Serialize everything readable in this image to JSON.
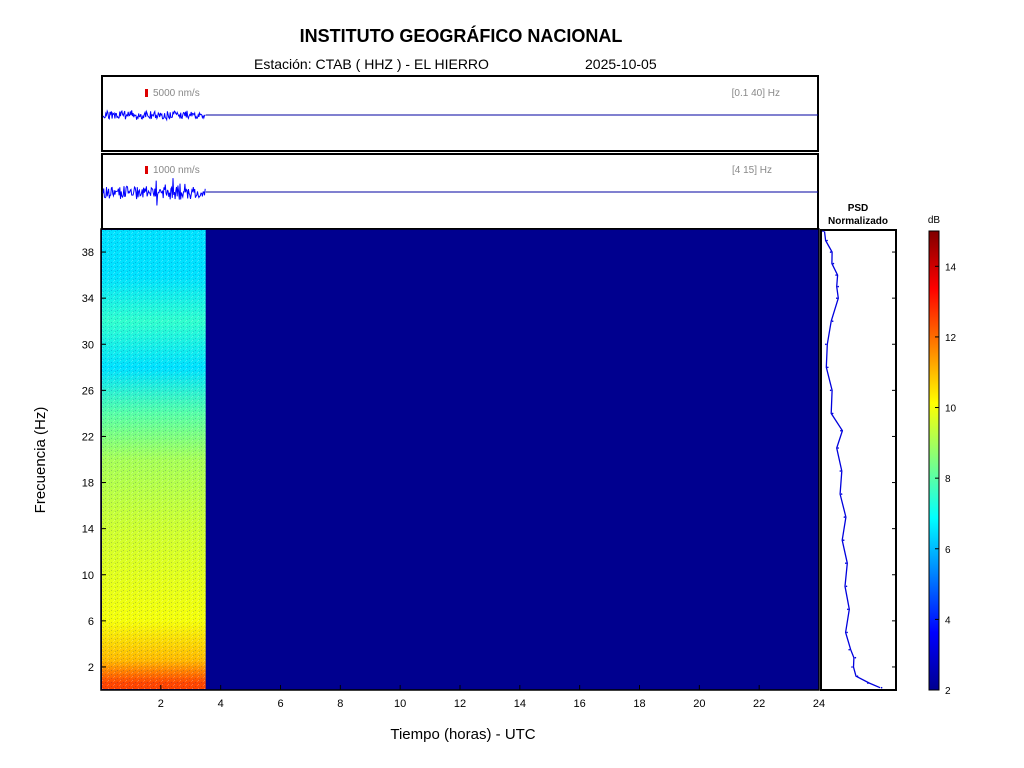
{
  "header": {
    "title": "INSTITUTO GEOGRÁFICO NACIONAL",
    "station": "Estación:  CTAB ( HHZ ) - EL HIERRO",
    "date": "2025-10-05"
  },
  "colors": {
    "trace": "#0000ff",
    "scale_marker": "#dd0000",
    "background_spectrum": "#00008f"
  },
  "chart_data": [
    {
      "type": "line",
      "panel": "seismogram-broadband",
      "scale_label": "5000 nm/s",
      "filter_label": "[0.1 40] Hz",
      "data_end_hour": 3.5,
      "xlim": [
        0,
        24
      ]
    },
    {
      "type": "line",
      "panel": "seismogram-filtered",
      "scale_label": "1000 nm/s",
      "filter_label": "[4 15] Hz",
      "data_end_hour": 3.5,
      "xlim": [
        0,
        24
      ]
    },
    {
      "type": "heatmap",
      "panel": "spectrogram",
      "xlabel": "Tiempo (horas) - UTC",
      "ylabel": "Frecuencia  (Hz)",
      "xlim": [
        0,
        24
      ],
      "ylim": [
        0,
        40
      ],
      "x_ticks": [
        2,
        4,
        6,
        8,
        10,
        12,
        14,
        16,
        18,
        20,
        22,
        24
      ],
      "y_ticks": [
        2,
        6,
        10,
        14,
        18,
        22,
        26,
        30,
        34,
        38
      ],
      "data_end_hour": 3.5,
      "approx_level_db": [
        {
          "freq": 0.5,
          "db": 12.5
        },
        {
          "freq": 2.5,
          "db": 11
        },
        {
          "freq": 6,
          "db": 10
        },
        {
          "freq": 14,
          "db": 9.5
        },
        {
          "freq": 20,
          "db": 9
        },
        {
          "freq": 24,
          "db": 8
        },
        {
          "freq": 28,
          "db": 6.5
        },
        {
          "freq": 32,
          "db": 7.5
        },
        {
          "freq": 36,
          "db": 6.5
        },
        {
          "freq": 40,
          "db": 6.5
        }
      ],
      "no_data_db": 2
    },
    {
      "type": "line",
      "panel": "psd",
      "title": "PSD\nNormalizado",
      "title_lines": [
        "PSD",
        "Normalizado"
      ],
      "points": [
        {
          "freq": 0.2,
          "v": 0.85
        },
        {
          "freq": 0.6,
          "v": 0.65
        },
        {
          "freq": 1.2,
          "v": 0.5
        },
        {
          "freq": 2.0,
          "v": 0.42
        },
        {
          "freq": 2.8,
          "v": 0.47
        },
        {
          "freq": 3.5,
          "v": 0.38
        },
        {
          "freq": 5,
          "v": 0.35
        },
        {
          "freq": 7,
          "v": 0.36
        },
        {
          "freq": 9,
          "v": 0.34
        },
        {
          "freq": 11,
          "v": 0.33
        },
        {
          "freq": 13,
          "v": 0.3
        },
        {
          "freq": 15,
          "v": 0.31
        },
        {
          "freq": 17,
          "v": 0.27
        },
        {
          "freq": 19,
          "v": 0.25
        },
        {
          "freq": 21,
          "v": 0.22
        },
        {
          "freq": 22.5,
          "v": 0.26
        },
        {
          "freq": 24,
          "v": 0.14
        },
        {
          "freq": 26,
          "v": 0.11
        },
        {
          "freq": 28,
          "v": 0.07
        },
        {
          "freq": 30,
          "v": 0.04
        },
        {
          "freq": 32,
          "v": 0.14
        },
        {
          "freq": 34,
          "v": 0.2
        },
        {
          "freq": 35,
          "v": 0.22
        },
        {
          "freq": 36,
          "v": 0.19
        },
        {
          "freq": 37,
          "v": 0.15
        },
        {
          "freq": 38,
          "v": 0.11
        },
        {
          "freq": 39,
          "v": 0.06
        },
        {
          "freq": 39.8,
          "v": 0.0
        }
      ]
    },
    {
      "type": "heatmap",
      "panel": "colorbar",
      "label": "dB",
      "ylim": [
        2,
        15
      ],
      "ticks": [
        2,
        4,
        6,
        8,
        10,
        12,
        14
      ]
    }
  ]
}
